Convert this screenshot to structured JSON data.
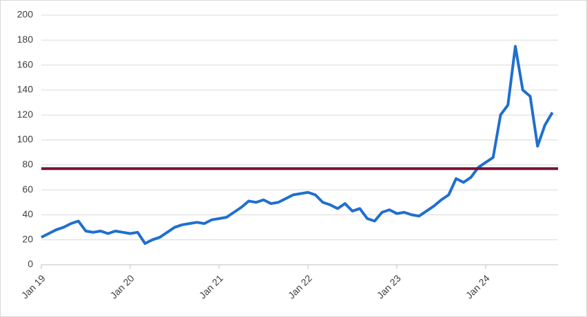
{
  "chart_data": {
    "type": "line",
    "categories": [
      "Jan 19",
      null,
      null,
      null,
      null,
      null,
      null,
      null,
      null,
      null,
      null,
      null,
      "Jan 20",
      null,
      null,
      null,
      null,
      null,
      null,
      null,
      null,
      null,
      null,
      null,
      "Jan 21",
      null,
      null,
      null,
      null,
      null,
      null,
      null,
      null,
      null,
      null,
      null,
      "Jan 22",
      null,
      null,
      null,
      null,
      null,
      null,
      null,
      null,
      null,
      null,
      null,
      "Jan 23",
      null,
      null,
      null,
      null,
      null,
      null,
      null,
      null,
      null,
      null,
      null,
      "Jan 24",
      null,
      null,
      null,
      null,
      null,
      null,
      null,
      null,
      null
    ],
    "series": [
      {
        "color": "#1f6fcf",
        "values": [
          22,
          25,
          28,
          30,
          33,
          35,
          27,
          26,
          27,
          25,
          27,
          26,
          25,
          26,
          17,
          20,
          22,
          26,
          30,
          32,
          33,
          34,
          33,
          36,
          37,
          38,
          42,
          46,
          51,
          50,
          52,
          49,
          50,
          53,
          56,
          57,
          58,
          56,
          50,
          48,
          45,
          49,
          43,
          45,
          37,
          35,
          42,
          44,
          41,
          42,
          40,
          39,
          43,
          47,
          52,
          56,
          69,
          66,
          70,
          78,
          82,
          86,
          120,
          128,
          175,
          140,
          135,
          95,
          112,
          122
        ]
      }
    ],
    "hlines": [
      {
        "value": 77,
        "color": "#7b1030"
      }
    ],
    "ylim": [
      0,
      200
    ],
    "yticks": [
      0,
      20,
      40,
      60,
      80,
      100,
      120,
      140,
      160,
      180,
      200
    ],
    "grid": true
  }
}
